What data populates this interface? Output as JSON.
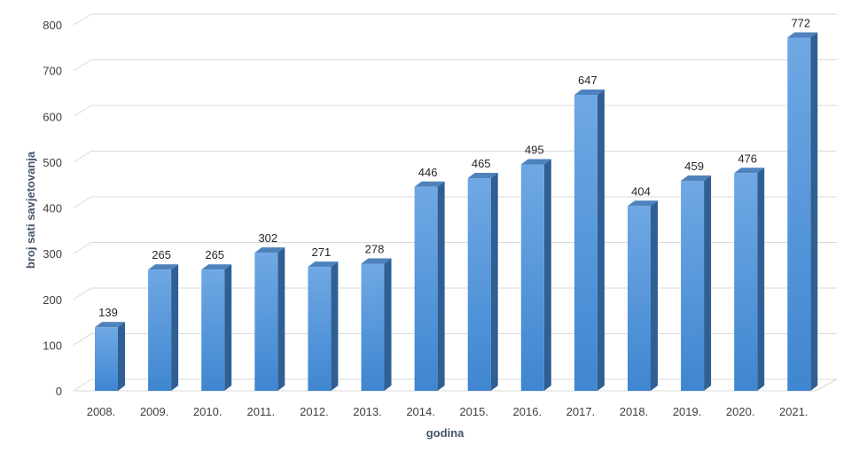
{
  "chart_data": {
    "type": "bar",
    "style": "3d-column",
    "xlabel": "godina",
    "ylabel": "broj sati savjetovanja",
    "ylim": [
      0,
      800
    ],
    "yticks": [
      0,
      100,
      200,
      300,
      400,
      500,
      600,
      700,
      800
    ],
    "grid": true,
    "legend": "none",
    "data_labels": true,
    "categories": [
      "2008.",
      "2009.",
      "2010.",
      "2011.",
      "2012.",
      "2013.",
      "2014.",
      "2015.",
      "2016.",
      "2017.",
      "2018.",
      "2019.",
      "2020.",
      "2021."
    ],
    "values": [
      139,
      265,
      265,
      302,
      271,
      278,
      446,
      465,
      495,
      647,
      404,
      459,
      476,
      772
    ],
    "colors": {
      "bar_front_light": "#6fa8e4",
      "bar_front_dark": "#3f86d0",
      "bar_side": "#2f5f93",
      "bar_top": "#4e82bd",
      "grid": "#d9d9d9",
      "floor": "#d9d9d9"
    }
  }
}
